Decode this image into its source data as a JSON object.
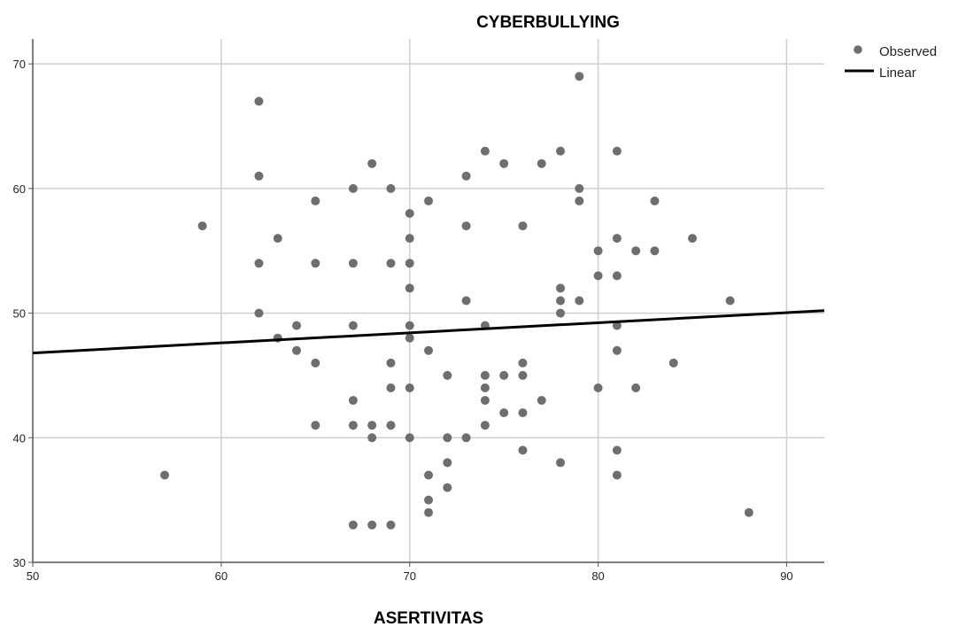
{
  "chart_data": {
    "type": "scatter",
    "title": "CYBERBULLYING",
    "xlabel": "ASERTIVITAS",
    "ylabel": "",
    "xlim": [
      50,
      92
    ],
    "ylim": [
      30,
      72
    ],
    "x_ticks": [
      50,
      60,
      70,
      80,
      90
    ],
    "y_ticks": [
      30,
      40,
      50,
      60,
      70
    ],
    "grid": true,
    "legend_position": "top-right",
    "legend": [
      "Observed",
      "Linear"
    ],
    "colors": {
      "points": "#6e6e6e",
      "line": "#000000",
      "grid": "#cfcfcf",
      "axis": "#555555"
    },
    "series": [
      {
        "name": "Observed",
        "points": [
          [
            57,
            37
          ],
          [
            59,
            57
          ],
          [
            62,
            67
          ],
          [
            62,
            61
          ],
          [
            62,
            54
          ],
          [
            62,
            50
          ],
          [
            63,
            56
          ],
          [
            63,
            48
          ],
          [
            64,
            49
          ],
          [
            64,
            47
          ],
          [
            65,
            59
          ],
          [
            65,
            54
          ],
          [
            65,
            46
          ],
          [
            65,
            41
          ],
          [
            67,
            60
          ],
          [
            67,
            54
          ],
          [
            67,
            49
          ],
          [
            67,
            43
          ],
          [
            67,
            41
          ],
          [
            67,
            33
          ],
          [
            68,
            62
          ],
          [
            68,
            41
          ],
          [
            68,
            40
          ],
          [
            68,
            33
          ],
          [
            69,
            60
          ],
          [
            69,
            54
          ],
          [
            69,
            46
          ],
          [
            69,
            44
          ],
          [
            69,
            41
          ],
          [
            69,
            33
          ],
          [
            70,
            58
          ],
          [
            70,
            56
          ],
          [
            70,
            54
          ],
          [
            70,
            52
          ],
          [
            70,
            49
          ],
          [
            70,
            48
          ],
          [
            70,
            44
          ],
          [
            70,
            40
          ],
          [
            71,
            59
          ],
          [
            71,
            47
          ],
          [
            71,
            37
          ],
          [
            71,
            35
          ],
          [
            71,
            34
          ],
          [
            72,
            45
          ],
          [
            72,
            40
          ],
          [
            72,
            38
          ],
          [
            72,
            36
          ],
          [
            73,
            61
          ],
          [
            73,
            57
          ],
          [
            73,
            51
          ],
          [
            73,
            40
          ],
          [
            74,
            63
          ],
          [
            74,
            49
          ],
          [
            74,
            45
          ],
          [
            74,
            44
          ],
          [
            74,
            43
          ],
          [
            74,
            41
          ],
          [
            75,
            62
          ],
          [
            75,
            45
          ],
          [
            75,
            42
          ],
          [
            76,
            57
          ],
          [
            76,
            46
          ],
          [
            76,
            45
          ],
          [
            76,
            42
          ],
          [
            76,
            39
          ],
          [
            77,
            62
          ],
          [
            77,
            43
          ],
          [
            78,
            63
          ],
          [
            78,
            52
          ],
          [
            78,
            51
          ],
          [
            78,
            50
          ],
          [
            78,
            38
          ],
          [
            79,
            69
          ],
          [
            79,
            60
          ],
          [
            79,
            59
          ],
          [
            79,
            51
          ],
          [
            80,
            55
          ],
          [
            80,
            53
          ],
          [
            80,
            44
          ],
          [
            81,
            63
          ],
          [
            81,
            56
          ],
          [
            81,
            53
          ],
          [
            81,
            49
          ],
          [
            81,
            47
          ],
          [
            81,
            39
          ],
          [
            81,
            37
          ],
          [
            82,
            55
          ],
          [
            82,
            44
          ],
          [
            83,
            59
          ],
          [
            83,
            55
          ],
          [
            84,
            46
          ],
          [
            85,
            56
          ],
          [
            87,
            51
          ],
          [
            88,
            34
          ]
        ]
      },
      {
        "name": "Linear",
        "line": [
          [
            50,
            46.8
          ],
          [
            92,
            50.2
          ]
        ]
      }
    ]
  }
}
